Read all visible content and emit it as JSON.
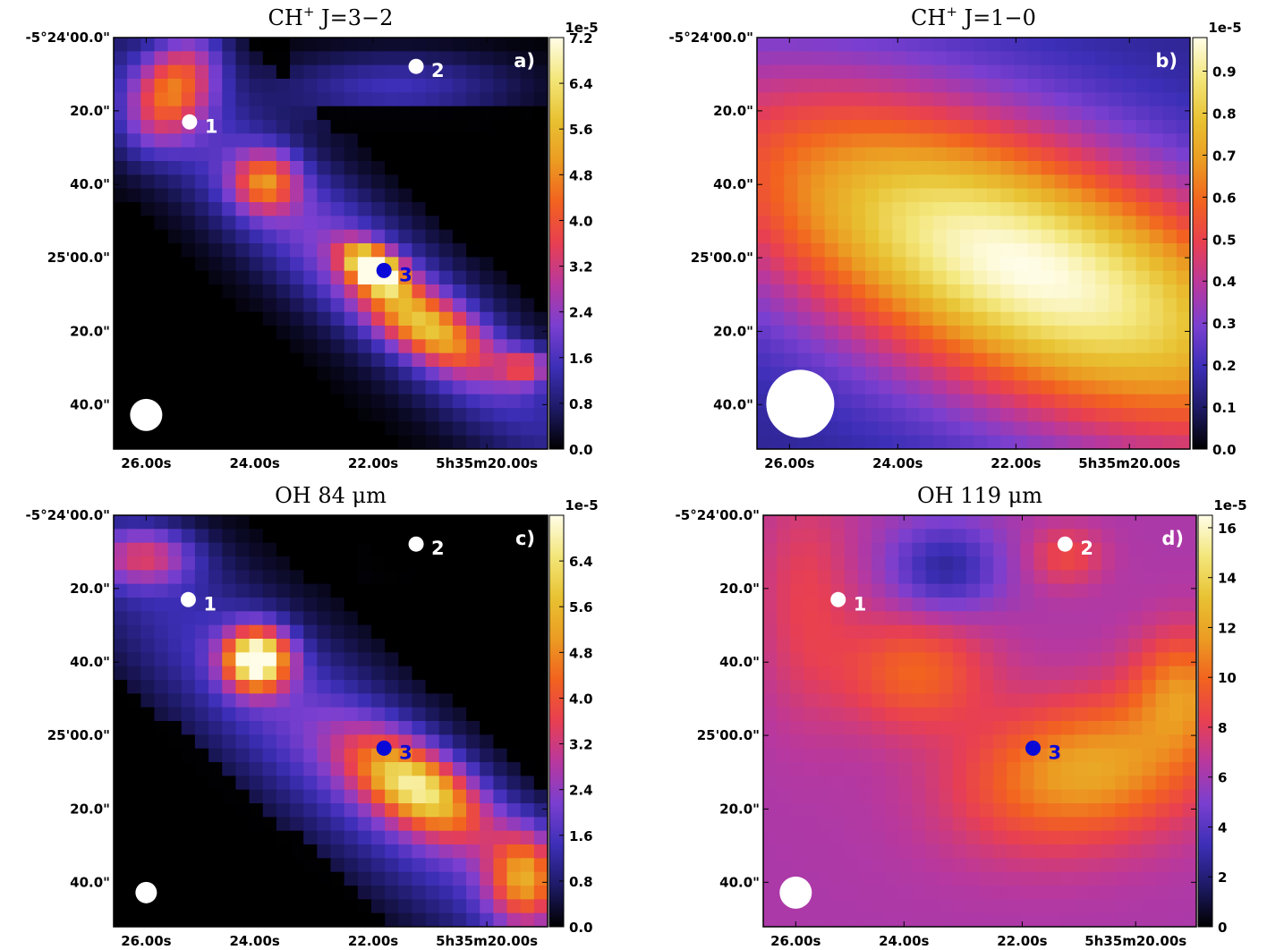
{
  "chart_data": [
    {
      "type": "heatmap",
      "panel": "a)",
      "title_species": "CH",
      "title_sup": "+",
      "title_transition": "J=3−2",
      "colorbar": {
        "scale": "1e-5",
        "min": 0.0,
        "max": 7.2,
        "ticks": [
          "0.0",
          "0.8",
          "1.6",
          "2.4",
          "3.2",
          "4.0",
          "4.8",
          "5.6",
          "6.4",
          "7.2"
        ]
      },
      "xticks": [
        "26.00s",
        "24.00s",
        "22.00s",
        "5h35m20.00s"
      ],
      "yticks": [
        "-5°24'00.0\"",
        "20.0\"",
        "40.0\"",
        "25'00.0\"",
        "20.0\"",
        "40.0\""
      ],
      "sources": [
        {
          "label": "1",
          "color": "#ffffff"
        },
        {
          "label": "2",
          "color": "#ffffff"
        },
        {
          "label": "3",
          "color": "#0a0ad8"
        }
      ]
    },
    {
      "type": "heatmap",
      "panel": "b)",
      "title_species": "CH",
      "title_sup": "+",
      "title_transition": "J=1−0",
      "colorbar": {
        "scale": "1e-5",
        "min": 0.0,
        "max": 0.98,
        "ticks": [
          "0.0",
          "0.1",
          "0.2",
          "0.3",
          "0.4",
          "0.5",
          "0.6",
          "0.7",
          "0.8",
          "0.9"
        ]
      },
      "xticks": [
        "26.00s",
        "24.00s",
        "22.00s",
        "5h35m20.00s"
      ],
      "yticks": [
        "-5°24'00.0\"",
        "20.0\"",
        "40.0\"",
        "25'00.0\"",
        "20.0\"",
        "40.0\""
      ],
      "sources": []
    },
    {
      "type": "heatmap",
      "panel": "c)",
      "title_species": "OH",
      "title_sup": "",
      "title_transition": "84 μm",
      "colorbar": {
        "scale": "1e-5",
        "min": 0.0,
        "max": 7.2,
        "ticks": [
          "0.0",
          "0.8",
          "1.6",
          "2.4",
          "3.2",
          "4.0",
          "4.8",
          "5.6",
          "6.4"
        ]
      },
      "xticks": [
        "26.00s",
        "24.00s",
        "22.00s",
        "5h35m20.00s"
      ],
      "yticks": [
        "-5°24'00.0\"",
        "20.0\"",
        "40.0\"",
        "25'00.0\"",
        "20.0\"",
        "40.0\""
      ],
      "sources": [
        {
          "label": "1",
          "color": "#ffffff"
        },
        {
          "label": "2",
          "color": "#ffffff"
        },
        {
          "label": "3",
          "color": "#0a0ad8"
        }
      ]
    },
    {
      "type": "heatmap",
      "panel": "d)",
      "title_species": "OH",
      "title_sup": "",
      "title_transition": "119 μm",
      "colorbar": {
        "scale": "1e-5",
        "min": 0,
        "max": 16.5,
        "ticks": [
          "0",
          "2",
          "4",
          "6",
          "8",
          "10",
          "12",
          "14",
          "16"
        ]
      },
      "xticks": [
        "26.00s",
        "24.00s",
        "22.00s",
        "5h35m20.00s"
      ],
      "yticks": [
        "-5°24'00.0\"",
        "20.0\"",
        "40.0\"",
        "25'00.0\"",
        "20.0\"",
        "40.0\""
      ],
      "sources": [
        {
          "label": "1",
          "color": "#ffffff"
        },
        {
          "label": "2",
          "color": "#ffffff"
        },
        {
          "label": "3",
          "color": "#0a0ad8"
        }
      ]
    }
  ],
  "colormap": [
    "#000000",
    "#1e1a66",
    "#3d2fb8",
    "#7a3fd0",
    "#b8389e",
    "#e83f52",
    "#f2621f",
    "#eb9c22",
    "#e8c232",
    "#f3e67a",
    "#fffde8"
  ]
}
